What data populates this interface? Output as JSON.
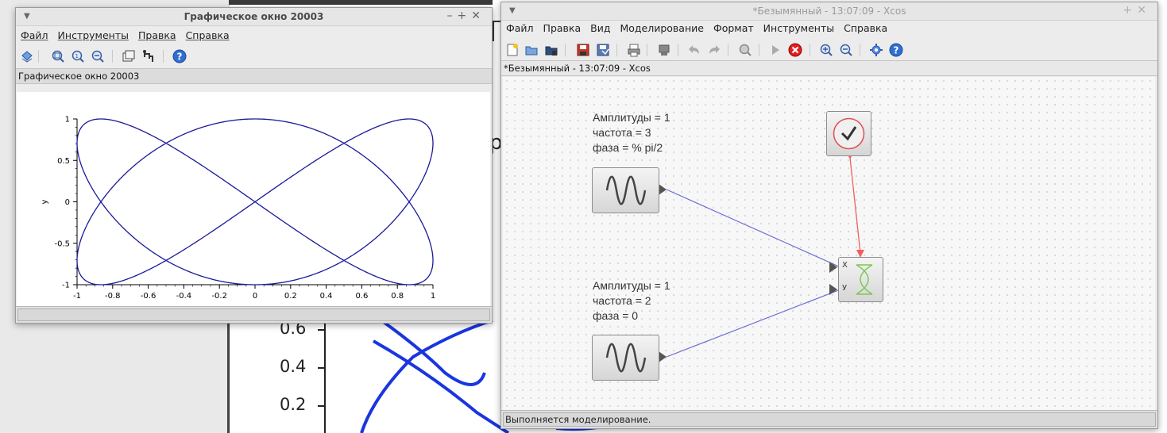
{
  "graphic_window": {
    "title": "Графическое окно 20003",
    "menu": [
      "Файл",
      "Инструменты",
      "Правка",
      "Справка"
    ],
    "toolbar_icons": [
      "rotate-icon",
      "zoom-in-icon",
      "zoom-area-icon",
      "zoom-out-icon",
      "window-icon",
      "datatip-icon",
      "help-icon"
    ],
    "subtitle": "Графическое окно 20003"
  },
  "chart_data": {
    "type": "line",
    "title": "",
    "xlabel": "",
    "ylabel": "y",
    "xlim": [
      -1,
      1
    ],
    "ylim": [
      -1,
      1
    ],
    "x_ticks": [
      "-1",
      "-0.8",
      "-0.6",
      "-0.4",
      "-0.2",
      "0",
      "0.2",
      "0.4",
      "0.6",
      "0.8",
      "1"
    ],
    "y_ticks": [
      "-1",
      "-0.5",
      "0",
      "0.5",
      "1"
    ],
    "series": [
      {
        "color": "#1a1a9a",
        "x_expr": "sin(2*t)",
        "y_expr": "sin(3*t + pi/2)",
        "t_range": [
          0,
          6.2832
        ]
      }
    ],
    "grid": false
  },
  "xcos_window": {
    "title": "*Безымянный - 13:07:09 - Xcos",
    "menu": [
      "Файл",
      "Правка",
      "Вид",
      "Моделирование",
      "Формат",
      "Инструменты",
      "Справка"
    ],
    "toolbar_icons": [
      "new-diagram-icon",
      "open-icon",
      "open-in-icon",
      "save-icon",
      "save-as-icon",
      "print-icon",
      "export-icon",
      "undo-icon",
      "redo-icon",
      "fit-diagram-icon",
      "start-icon",
      "stop-icon",
      "zoom-in-icon",
      "zoom-out-icon",
      "palette-icon",
      "help-icon"
    ],
    "subtitle": "*Безымянный - 13:07:09 - Xcos",
    "block1_label": [
      "Амплитуды = 1",
      "частота = 3",
      "фаза = % pi/2"
    ],
    "block2_label": [
      "Амплитуды = 1",
      "частота = 2",
      "фаза = 0"
    ],
    "port_x": "X",
    "port_y": "У",
    "status": "Выполняется моделирование."
  },
  "background_plot": {
    "y_ticks": [
      "0.6",
      "0.4",
      "0.2"
    ],
    "partial_text": [
      "р"
    ]
  },
  "colors": {
    "curve": "#1a1a9a",
    "data_link": "#6b6bd6",
    "event_link": "#f06060",
    "stop_icon": "#e02020"
  }
}
